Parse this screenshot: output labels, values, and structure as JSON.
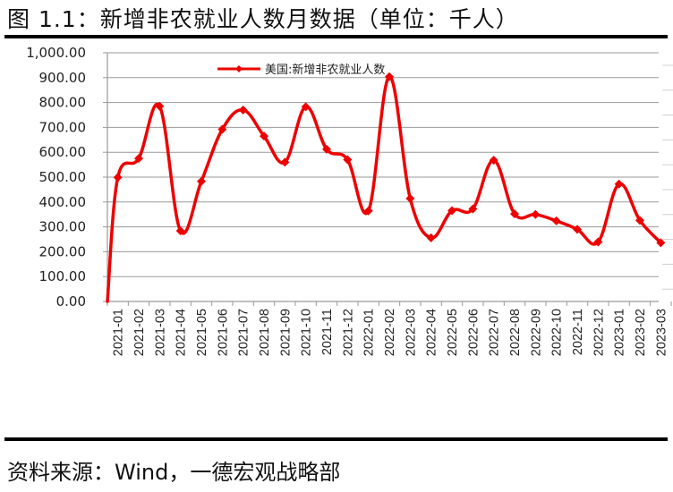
{
  "header": {
    "title": "图 1.1：新增非农就业人数月数据（单位：千人）"
  },
  "footer": {
    "source": "资料来源：Wind，一德宏观战略部"
  },
  "colors": {
    "series": "#ee0000",
    "grid": "#9a9a9a",
    "rule": "#000000"
  },
  "chart_data": {
    "type": "line",
    "title": "图 1.1：新增非农就业人数月数据（单位：千人）",
    "xlabel": "",
    "ylabel": "",
    "ylim": [
      0,
      1000
    ],
    "y_ticks": [
      "0.00",
      "100.00",
      "200.00",
      "300.00",
      "400.00",
      "500.00",
      "600.00",
      "700.00",
      "800.00",
      "900.00",
      "1,000.00"
    ],
    "grid": true,
    "legend_position": "top-center",
    "categories": [
      "2021-01",
      "2021-02",
      "2021-03",
      "2021-04",
      "2021-05",
      "2021-06",
      "2021-07",
      "2021-08",
      "2021-09",
      "2021-10",
      "2021-11",
      "2021-12",
      "2022-01",
      "2022-02",
      "2022-03",
      "2022-04",
      "2022-05",
      "2022-06",
      "2022-07",
      "2022-08",
      "2022-09",
      "2022-10",
      "2022-11",
      "2022-12",
      "2023-01",
      "2023-02",
      "2023-03"
    ],
    "series": [
      {
        "name": "美国:新增非农就业人数",
        "values": [
          499,
          575,
          785,
          284,
          483,
          692,
          770,
          665,
          560,
          783,
          612,
          570,
          364,
          904,
          414,
          256,
          365,
          372,
          568,
          352,
          350,
          324,
          290,
          239,
          472,
          326,
          236
        ]
      }
    ]
  }
}
